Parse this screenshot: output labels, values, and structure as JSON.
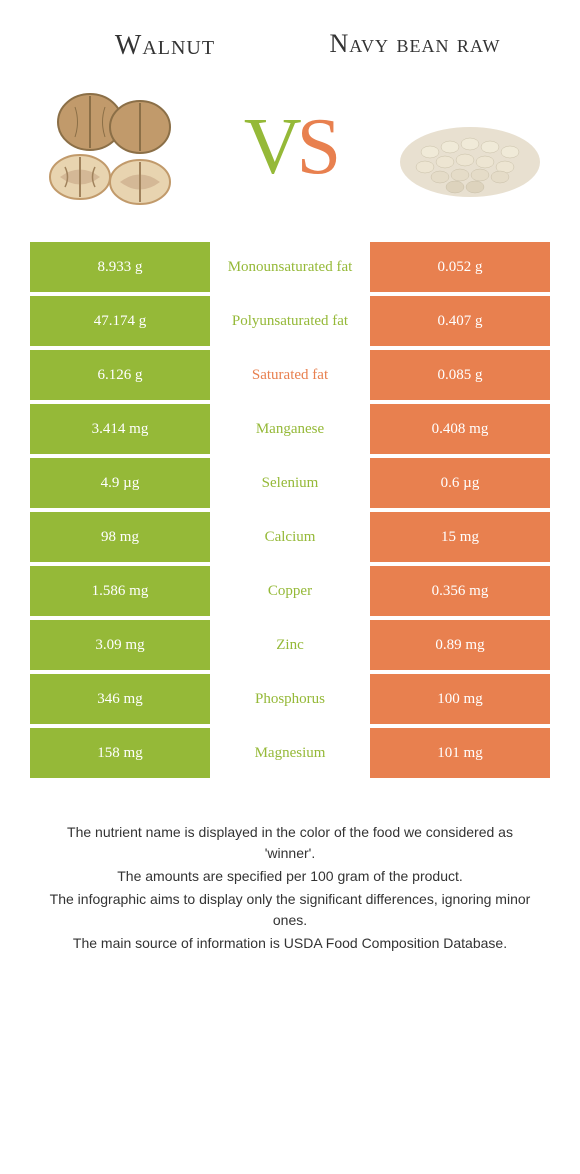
{
  "colors": {
    "left_bg": "#95b938",
    "right_bg": "#e8804f",
    "left_text": "#95b938",
    "right_text": "#e8804f",
    "cell_text": "#ffffff",
    "body_bg": "#ffffff"
  },
  "header": {
    "left_title": "Walnut",
    "right_title": "Navy bean raw"
  },
  "vs": {
    "v": "V",
    "s": "S"
  },
  "rows": [
    {
      "left": "8.933 g",
      "label": "Monounsaturated fat",
      "right": "0.052 g",
      "winner": "left"
    },
    {
      "left": "47.174 g",
      "label": "Polyunsaturated fat",
      "right": "0.407 g",
      "winner": "left"
    },
    {
      "left": "6.126 g",
      "label": "Saturated fat",
      "right": "0.085 g",
      "winner": "right"
    },
    {
      "left": "3.414 mg",
      "label": "Manganese",
      "right": "0.408 mg",
      "winner": "left"
    },
    {
      "left": "4.9 µg",
      "label": "Selenium",
      "right": "0.6 µg",
      "winner": "left"
    },
    {
      "left": "98 mg",
      "label": "Calcium",
      "right": "15 mg",
      "winner": "left"
    },
    {
      "left": "1.586 mg",
      "label": "Copper",
      "right": "0.356 mg",
      "winner": "left"
    },
    {
      "left": "3.09 mg",
      "label": "Zinc",
      "right": "0.89 mg",
      "winner": "left"
    },
    {
      "left": "346 mg",
      "label": "Phosphorus",
      "right": "100 mg",
      "winner": "left"
    },
    {
      "left": "158 mg",
      "label": "Magnesium",
      "right": "101 mg",
      "winner": "left"
    }
  ],
  "footer": {
    "line1": "The nutrient name is displayed in the color of the food we considered as 'winner'.",
    "line2": "The amounts are specified per 100 gram of the product.",
    "line3": "The infographic aims to display only the significant differences, ignoring minor ones.",
    "line4": "The main source of information is USDA Food Composition Database."
  }
}
